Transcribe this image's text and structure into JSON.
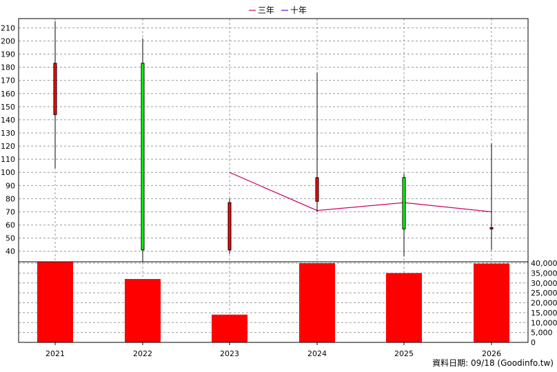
{
  "chart_data": {
    "type": "candlestick",
    "legend": {
      "placement": "top-center",
      "entries": [
        {
          "label": "三年",
          "color": "#cc0066"
        },
        {
          "label": "十年",
          "color": "#6600cc"
        }
      ]
    },
    "categories": [
      "2021",
      "2022",
      "2023",
      "2024",
      "2025",
      "2026"
    ],
    "price_axis": {
      "ylim": [
        32,
        217
      ],
      "ticks": [
        40,
        50,
        60,
        70,
        80,
        90,
        100,
        110,
        120,
        130,
        140,
        150,
        160,
        170,
        180,
        190,
        200,
        210
      ],
      "side": "left",
      "grid": true
    },
    "volume_axis": {
      "ylim": [
        0,
        40000
      ],
      "ticks": [
        0,
        5000,
        10000,
        15000,
        20000,
        25000,
        30000,
        35000,
        40000
      ],
      "tick_labels": [
        "0",
        "5,000",
        "10,000",
        "15,000",
        "20,000",
        "25,000",
        "30,000",
        "35,000",
        "40,000"
      ],
      "side": "right",
      "grid": true
    },
    "candles": [
      {
        "x": "2021",
        "open": 144,
        "high": 215,
        "low": 103,
        "close": 183,
        "color": "#ff0000"
      },
      {
        "x": "2022",
        "open": 183,
        "high": 202,
        "low": 32,
        "close": 41,
        "color": "#00ff00"
      },
      {
        "x": "2023",
        "open": 41,
        "high": 80,
        "low": 38,
        "close": 77,
        "color": "#ff0000"
      },
      {
        "x": "2024",
        "open": 78,
        "high": 176,
        "low": 70,
        "close": 96,
        "color": "#ff0000"
      },
      {
        "x": "2025",
        "open": 96,
        "high": 99,
        "low": 36,
        "close": 57,
        "color": "#00ff00"
      },
      {
        "x": "2026",
        "open": 57,
        "high": 122,
        "low": 41,
        "close": 58,
        "color": "#ff0000"
      }
    ],
    "series": [
      {
        "name": "三年",
        "color": "#cc0066",
        "x": [
          "2023",
          "2024",
          "2025",
          "2026"
        ],
        "values": [
          100,
          71,
          77,
          70
        ]
      }
    ],
    "volume": {
      "color": "#ff0000",
      "values": [
        40500,
        32000,
        14000,
        40000,
        35000,
        39800
      ]
    }
  },
  "source_label": "資料日期: 09/18  (Goodinfo.tw)"
}
